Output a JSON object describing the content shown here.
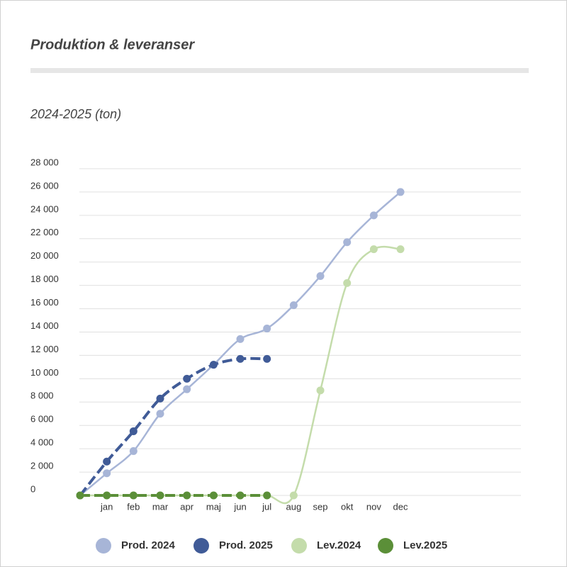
{
  "chart_data": {
    "type": "line",
    "title": "Produktion & leveranser",
    "subtitle": "2024-2025 (ton)",
    "categories": [
      null,
      "jan",
      "feb",
      "mar",
      "apr",
      "maj",
      "jun",
      "jul",
      "aug",
      "sep",
      "okt",
      "nov",
      "dec"
    ],
    "series": [
      {
        "name": "Prod. 2024",
        "color": "#a7b5d7",
        "dashed": false,
        "values": [
          0,
          1900,
          3800,
          7000,
          9100,
          11200,
          13400,
          14300,
          16300,
          18800,
          21700,
          24000,
          26000
        ]
      },
      {
        "name": "Prod. 2025",
        "color": "#405b97",
        "dashed": true,
        "values": [
          0,
          2900,
          5500,
          8300,
          10000,
          11200,
          11700,
          11700,
          null,
          null,
          null,
          null,
          null
        ]
      },
      {
        "name": "Lev.2024",
        "color": "#c4dcab",
        "dashed": false,
        "values": [
          0,
          0,
          0,
          0,
          0,
          0,
          0,
          0,
          0,
          9000,
          18200,
          21100,
          21100
        ]
      },
      {
        "name": "Lev.2025",
        "color": "#5b8f38",
        "dashed": true,
        "values": [
          0,
          0,
          0,
          0,
          0,
          0,
          0,
          0,
          null,
          null,
          null,
          null,
          null
        ]
      }
    ],
    "ylim": [
      0,
      28000
    ],
    "yticks": [
      0,
      {
        "value": 2000,
        "label": "2 000"
      },
      {
        "value": 4000,
        "label": "4 000"
      },
      {
        "value": 6000,
        "label": "6 000"
      },
      {
        "value": 8000,
        "label": "8 000"
      },
      {
        "value": 10000,
        "label": "10 000"
      },
      {
        "value": 12000,
        "label": "12 000"
      },
      {
        "value": 14000,
        "label": "14 000"
      },
      {
        "value": 16000,
        "label": "16 000"
      },
      {
        "value": 18000,
        "label": "18 000"
      },
      {
        "value": 20000,
        "label": "20 000"
      },
      {
        "value": 22000,
        "label": "22 000"
      },
      {
        "value": 24000,
        "label": "24 000"
      },
      {
        "value": 26000,
        "label": "26 000"
      },
      {
        "value": 28000,
        "label": "28 000"
      }
    ],
    "grid": true,
    "legend": "bottom"
  }
}
